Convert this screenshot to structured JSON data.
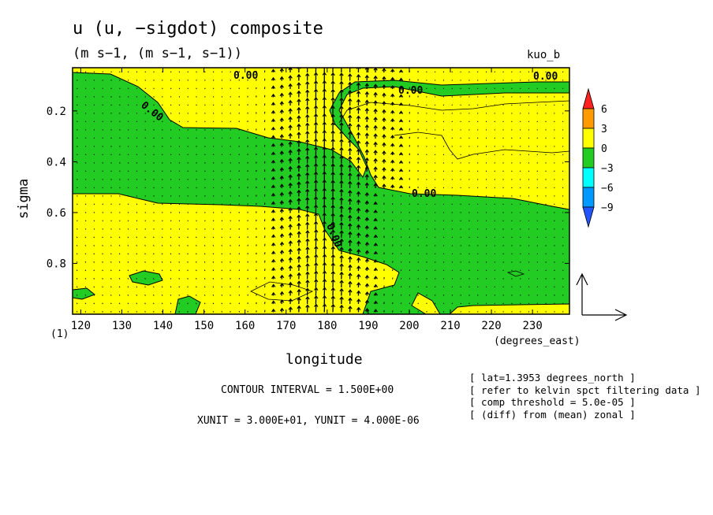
{
  "chart_data": {
    "type": "contour",
    "title": "u (u, −sigdot) composite",
    "subtitle": "(m s−1, (m s−1, s−1))",
    "dataset": "kuo_b",
    "xlabel": "longitude",
    "xunits": "(degrees_east)",
    "ylabel": "sigma",
    "page_label": "(1)",
    "xlim": [
      118,
      239
    ],
    "ylim": [
      1.0,
      0.03
    ],
    "xticks": [
      120,
      130,
      140,
      150,
      160,
      170,
      180,
      190,
      200,
      210,
      220,
      230
    ],
    "yticks": [
      0.2,
      0.4,
      0.6,
      0.8
    ],
    "ytick_labels": [
      "0.2",
      "0.4",
      "0.6",
      "0.8"
    ],
    "contour_interval_text": "CONTOUR INTERVAL = 1.500E+00",
    "vector_units_text": "XUNIT = 3.000E+01, YUNIT = 4.000E-06",
    "contour_labels": [
      "0.00",
      "0.00",
      "0.00",
      "0.00",
      "0.00",
      "0.00"
    ],
    "colorbar": {
      "levels": [
        -9,
        -6,
        -3,
        0,
        3,
        6
      ],
      "labels": [
        "6",
        "3",
        "0",
        "−3",
        "−6",
        "−9"
      ],
      "colors": [
        "#ff2020",
        "#ff9a00",
        "#ffff00",
        "#22cc22",
        "#00ffff",
        "#0099ff",
        "#2255ff"
      ]
    },
    "fill_colors": {
      "positive": "#ffff00",
      "negative": "#22cc22"
    },
    "notes": [
      "[ lat=1.3953 degrees_north ]",
      "[ refer to kelvin spct filtering data ]",
      "[ comp threshold = 5.0e-05 ]",
      "[ (diff) from (mean) zonal ]"
    ]
  }
}
